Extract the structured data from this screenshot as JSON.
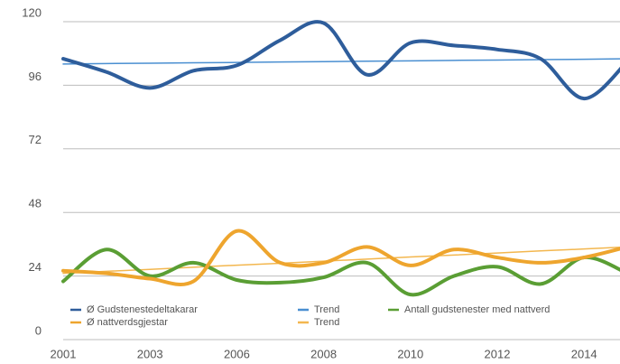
{
  "chart_data": {
    "type": "line",
    "categories": [
      "2001",
      null,
      "2003",
      null,
      "2006",
      null,
      "2008",
      null,
      "2010",
      null,
      "2012",
      null,
      "2014",
      null
    ],
    "series": [
      {
        "name": "Ø Gudstenestedeltakarar",
        "color": "#2e5d9b",
        "width": 4,
        "smooth": true,
        "values": [
          106,
          101,
          95,
          101.5,
          103.5,
          113,
          119.5,
          100,
          112,
          111,
          109.5,
          106,
          91,
          105
        ]
      },
      {
        "name": "Trend",
        "color": "#4a8fd1",
        "width": 1.5,
        "smooth": false,
        "values": [
          104,
          104.2,
          104.3,
          104.5,
          104.6,
          104.8,
          104.9,
          105.1,
          105.2,
          105.4,
          105.5,
          105.7,
          105.8,
          106
        ]
      },
      {
        "name": "Antall gudstenester med nattverd",
        "color": "#5a9e34",
        "width": 4,
        "smooth": true,
        "values": [
          22,
          34,
          24,
          29,
          22.5,
          21.5,
          23.5,
          29,
          17,
          24,
          27.5,
          21,
          31,
          25
        ]
      },
      {
        "name": "Ø nattverdsgjestar",
        "color": "#eea52e",
        "width": 4,
        "smooth": true,
        "values": [
          26,
          25,
          23,
          22,
          41,
          29,
          29,
          35,
          28,
          34,
          31,
          29,
          31,
          35
        ]
      },
      {
        "name": "Trend",
        "color": "#f3b74f",
        "width": 1.5,
        "smooth": false,
        "values": [
          25,
          25.8,
          26.5,
          27.3,
          28.1,
          28.8,
          29.6,
          30.4,
          31.2,
          31.9,
          32.7,
          33.5,
          34.2,
          35
        ]
      }
    ],
    "ylim": [
      0,
      120
    ],
    "yticks": [
      0,
      24,
      48,
      72,
      96,
      120
    ],
    "grid": true
  }
}
